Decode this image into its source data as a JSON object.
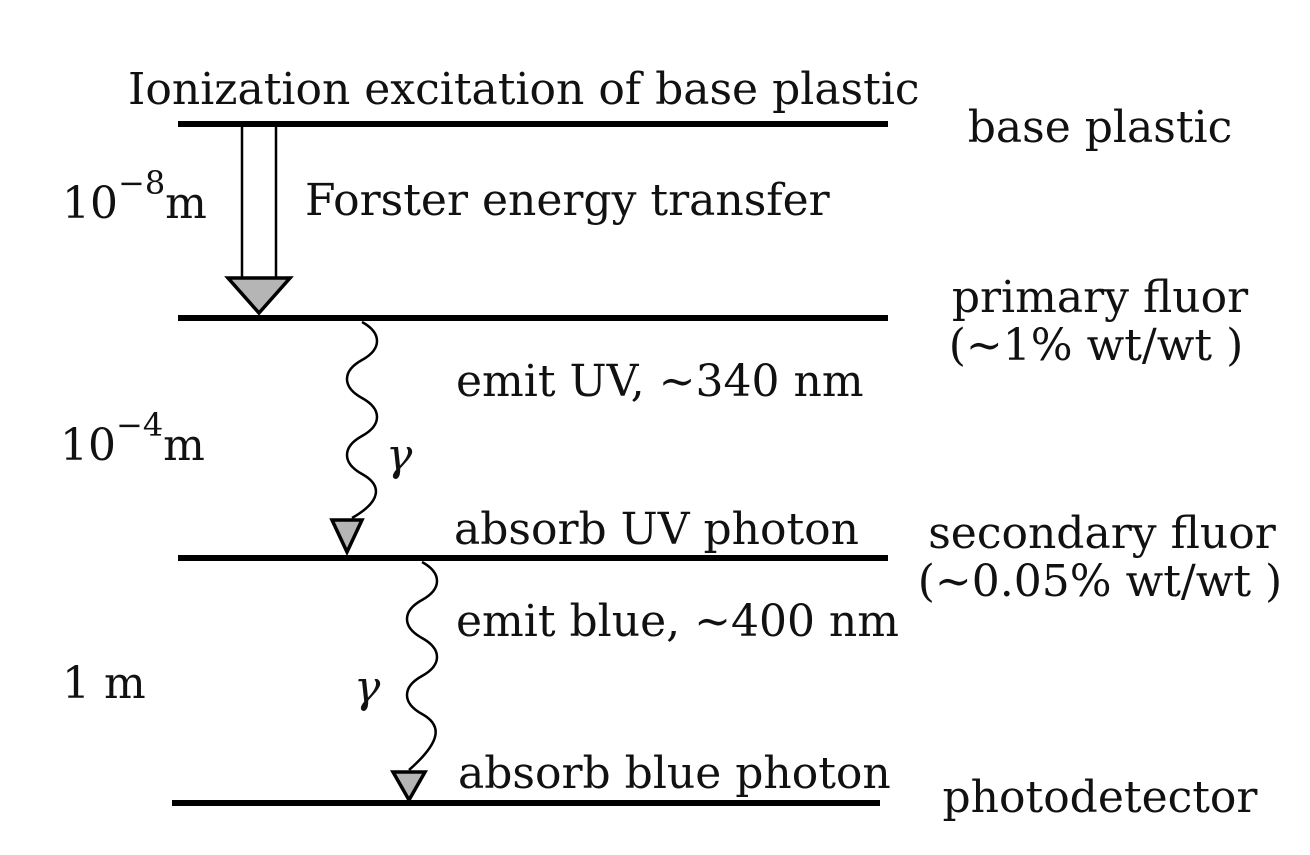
{
  "title": "Ionization excitation of base plastic",
  "levels": [
    {
      "name": "base plastic",
      "detail": ""
    },
    {
      "name": "primary fluor",
      "detail": "(~1% wt/wt )"
    },
    {
      "name": "secondary fluor",
      "detail": "(~0.05% wt/wt )"
    },
    {
      "name": "photodetector",
      "detail": ""
    }
  ],
  "distances": [
    {
      "base": "10",
      "exponent": "−8",
      "unit": "m"
    },
    {
      "base": "10",
      "exponent": "−4",
      "unit": "m"
    },
    {
      "base": "1 m",
      "exponent": "",
      "unit": ""
    }
  ],
  "processes": {
    "forster": "Forster energy transfer",
    "emit_uv": "emit UV, ~340 nm",
    "absorb_uv": "absorb UV photon",
    "emit_blue": "emit blue, ~400 nm",
    "absorb_blue": "absorb blue photon"
  },
  "photon_symbol": "γ",
  "colors": {
    "line": "#000000",
    "arrow_fill": "#b5b5b5",
    "text": "#111111"
  }
}
